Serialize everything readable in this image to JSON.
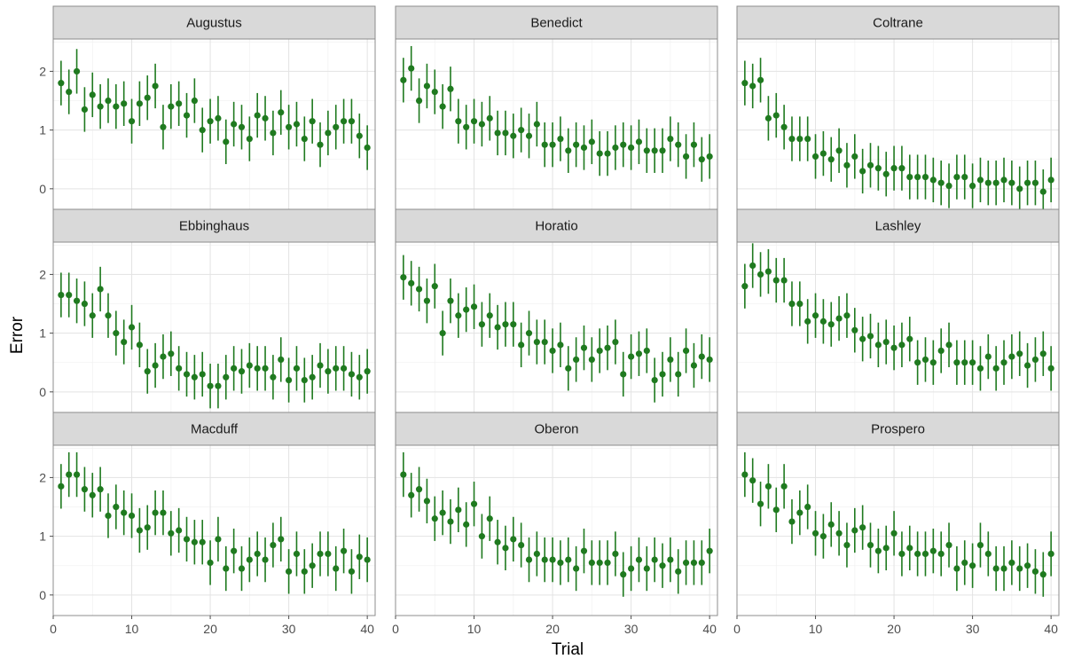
{
  "chart_data": {
    "type": "scatter",
    "facets": [
      "Augustus",
      "Benedict",
      "Coltrane",
      "Ebbinghaus",
      "Horatio",
      "Lashley",
      "Macduff",
      "Oberon",
      "Prospero"
    ],
    "layout": {
      "rows": 3,
      "cols": 3
    },
    "xlabel": "Trial",
    "ylabel": "Error",
    "xlim": [
      0,
      41
    ],
    "ylim": [
      -0.35,
      2.55
    ],
    "xticks": [
      0,
      10,
      20,
      30,
      40
    ],
    "yticks": [
      0,
      1,
      2
    ],
    "grid": true,
    "point_color": "#1f7a1f",
    "strip_color": "#d9d9d9",
    "error_bar_halfwidth": 0.38,
    "series": [
      {
        "name": "Augustus",
        "x": [
          1,
          2,
          3,
          4,
          5,
          6,
          7,
          8,
          9,
          10,
          11,
          12,
          13,
          14,
          15,
          16,
          17,
          18,
          19,
          20,
          21,
          22,
          23,
          24,
          25,
          26,
          27,
          28,
          29,
          30,
          31,
          32,
          33,
          34,
          35,
          36,
          37,
          38,
          39,
          40
        ],
        "y": [
          1.8,
          1.65,
          2.0,
          1.35,
          1.6,
          1.4,
          1.5,
          1.4,
          1.45,
          1.15,
          1.45,
          1.55,
          1.75,
          1.05,
          1.4,
          1.45,
          1.25,
          1.5,
          1.0,
          1.15,
          1.2,
          0.8,
          1.1,
          1.05,
          0.85,
          1.25,
          1.2,
          0.95,
          1.3,
          1.05,
          1.1,
          0.85,
          1.15,
          0.75,
          0.95,
          1.05,
          1.15,
          1.15,
          0.9,
          0.7
        ]
      },
      {
        "name": "Benedict",
        "x": [
          1,
          2,
          3,
          4,
          5,
          6,
          7,
          8,
          9,
          10,
          11,
          12,
          13,
          14,
          15,
          16,
          17,
          18,
          19,
          20,
          21,
          22,
          23,
          24,
          25,
          26,
          27,
          28,
          29,
          30,
          31,
          32,
          33,
          34,
          35,
          36,
          37,
          38,
          39,
          40
        ],
        "y": [
          1.85,
          2.05,
          1.5,
          1.75,
          1.65,
          1.4,
          1.7,
          1.15,
          1.05,
          1.15,
          1.1,
          1.2,
          0.95,
          0.95,
          0.9,
          1.0,
          0.9,
          1.1,
          0.75,
          0.75,
          0.85,
          0.65,
          0.75,
          0.7,
          0.8,
          0.6,
          0.6,
          0.7,
          0.75,
          0.7,
          0.8,
          0.65,
          0.65,
          0.65,
          0.85,
          0.75,
          0.55,
          0.75,
          0.5,
          0.55
        ]
      },
      {
        "name": "Coltrane",
        "x": [
          1,
          2,
          3,
          4,
          5,
          6,
          7,
          8,
          9,
          10,
          11,
          12,
          13,
          14,
          15,
          16,
          17,
          18,
          19,
          20,
          21,
          22,
          23,
          24,
          25,
          26,
          27,
          28,
          29,
          30,
          31,
          32,
          33,
          34,
          35,
          36,
          37,
          38,
          39,
          40
        ],
        "y": [
          1.8,
          1.75,
          1.85,
          1.2,
          1.25,
          1.05,
          0.85,
          0.85,
          0.85,
          0.55,
          0.6,
          0.5,
          0.65,
          0.4,
          0.55,
          0.3,
          0.4,
          0.35,
          0.25,
          0.35,
          0.35,
          0.2,
          0.2,
          0.2,
          0.15,
          0.1,
          0.05,
          0.2,
          0.2,
          0.05,
          0.15,
          0.1,
          0.1,
          0.15,
          0.1,
          0.0,
          0.1,
          0.1,
          -0.05,
          0.15
        ]
      },
      {
        "name": "Ebbinghaus",
        "x": [
          1,
          2,
          3,
          4,
          5,
          6,
          7,
          8,
          9,
          10,
          11,
          12,
          13,
          14,
          15,
          16,
          17,
          18,
          19,
          20,
          21,
          22,
          23,
          24,
          25,
          26,
          27,
          28,
          29,
          30,
          31,
          32,
          33,
          34,
          35,
          36,
          37,
          38,
          39,
          40
        ],
        "y": [
          1.65,
          1.65,
          1.55,
          1.5,
          1.3,
          1.75,
          1.3,
          1.0,
          0.85,
          1.1,
          0.8,
          0.35,
          0.45,
          0.6,
          0.65,
          0.4,
          0.3,
          0.25,
          0.3,
          0.1,
          0.1,
          0.25,
          0.4,
          0.35,
          0.45,
          0.4,
          0.4,
          0.25,
          0.55,
          0.2,
          0.4,
          0.2,
          0.25,
          0.45,
          0.35,
          0.4,
          0.4,
          0.3,
          0.25,
          0.35
        ]
      },
      {
        "name": "Horatio",
        "x": [
          1,
          2,
          3,
          4,
          5,
          6,
          7,
          8,
          9,
          10,
          11,
          12,
          13,
          14,
          15,
          16,
          17,
          18,
          19,
          20,
          21,
          22,
          23,
          24,
          25,
          26,
          27,
          28,
          29,
          30,
          31,
          32,
          33,
          34,
          35,
          36,
          37,
          38,
          39,
          40
        ],
        "y": [
          1.95,
          1.85,
          1.75,
          1.55,
          1.8,
          1.0,
          1.55,
          1.3,
          1.4,
          1.45,
          1.15,
          1.3,
          1.1,
          1.15,
          1.15,
          0.8,
          1.0,
          0.85,
          0.85,
          0.7,
          0.8,
          0.4,
          0.55,
          0.75,
          0.55,
          0.7,
          0.75,
          0.85,
          0.3,
          0.6,
          0.65,
          0.7,
          0.2,
          0.3,
          0.55,
          0.3,
          0.7,
          0.45,
          0.6,
          0.55
        ]
      },
      {
        "name": "Lashley",
        "x": [
          1,
          2,
          3,
          4,
          5,
          6,
          7,
          8,
          9,
          10,
          11,
          12,
          13,
          14,
          15,
          16,
          17,
          18,
          19,
          20,
          21,
          22,
          23,
          24,
          25,
          26,
          27,
          28,
          29,
          30,
          31,
          32,
          33,
          34,
          35,
          36,
          37,
          38,
          39,
          40
        ],
        "y": [
          1.8,
          2.15,
          2.0,
          2.05,
          1.9,
          1.9,
          1.5,
          1.5,
          1.2,
          1.3,
          1.2,
          1.15,
          1.25,
          1.3,
          1.05,
          0.9,
          0.95,
          0.8,
          0.85,
          0.75,
          0.8,
          0.9,
          0.5,
          0.55,
          0.5,
          0.7,
          0.8,
          0.5,
          0.5,
          0.5,
          0.4,
          0.6,
          0.4,
          0.5,
          0.6,
          0.65,
          0.45,
          0.55,
          0.65,
          0.4
        ]
      },
      {
        "name": "Macduff",
        "x": [
          1,
          2,
          3,
          4,
          5,
          6,
          7,
          8,
          9,
          10,
          11,
          12,
          13,
          14,
          15,
          16,
          17,
          18,
          19,
          20,
          21,
          22,
          23,
          24,
          25,
          26,
          27,
          28,
          29,
          30,
          31,
          32,
          33,
          34,
          35,
          36,
          37,
          38,
          39,
          40
        ],
        "y": [
          1.85,
          2.05,
          2.05,
          1.8,
          1.7,
          1.8,
          1.35,
          1.5,
          1.4,
          1.35,
          1.1,
          1.15,
          1.4,
          1.4,
          1.05,
          1.1,
          0.95,
          0.9,
          0.9,
          0.55,
          0.95,
          0.45,
          0.75,
          0.45,
          0.6,
          0.7,
          0.6,
          0.85,
          0.95,
          0.4,
          0.7,
          0.4,
          0.5,
          0.7,
          0.7,
          0.45,
          0.75,
          0.4,
          0.65,
          0.6
        ]
      },
      {
        "name": "Oberon",
        "x": [
          1,
          2,
          3,
          4,
          5,
          6,
          7,
          8,
          9,
          10,
          11,
          12,
          13,
          14,
          15,
          16,
          17,
          18,
          19,
          20,
          21,
          22,
          23,
          24,
          25,
          26,
          27,
          28,
          29,
          30,
          31,
          32,
          33,
          34,
          35,
          36,
          37,
          38,
          39,
          40
        ],
        "y": [
          2.05,
          1.7,
          1.8,
          1.6,
          1.3,
          1.4,
          1.25,
          1.45,
          1.2,
          1.55,
          1.0,
          1.3,
          0.9,
          0.8,
          0.95,
          0.85,
          0.6,
          0.7,
          0.6,
          0.6,
          0.55,
          0.6,
          0.45,
          0.75,
          0.55,
          0.55,
          0.55,
          0.7,
          0.35,
          0.45,
          0.6,
          0.45,
          0.6,
          0.5,
          0.6,
          0.4,
          0.55,
          0.55,
          0.55,
          0.75
        ]
      },
      {
        "name": "Prospero",
        "x": [
          1,
          2,
          3,
          4,
          5,
          6,
          7,
          8,
          9,
          10,
          11,
          12,
          13,
          14,
          15,
          16,
          17,
          18,
          19,
          20,
          21,
          22,
          23,
          24,
          25,
          26,
          27,
          28,
          29,
          30,
          31,
          32,
          33,
          34,
          35,
          36,
          37,
          38,
          39,
          40
        ],
        "y": [
          2.05,
          1.95,
          1.55,
          1.85,
          1.45,
          1.85,
          1.25,
          1.4,
          1.5,
          1.05,
          1.0,
          1.2,
          1.05,
          0.85,
          1.1,
          1.15,
          0.85,
          0.75,
          0.8,
          1.05,
          0.7,
          0.8,
          0.7,
          0.7,
          0.75,
          0.7,
          0.85,
          0.45,
          0.55,
          0.5,
          0.85,
          0.7,
          0.45,
          0.45,
          0.55,
          0.45,
          0.5,
          0.4,
          0.35,
          0.7
        ]
      }
    ]
  }
}
